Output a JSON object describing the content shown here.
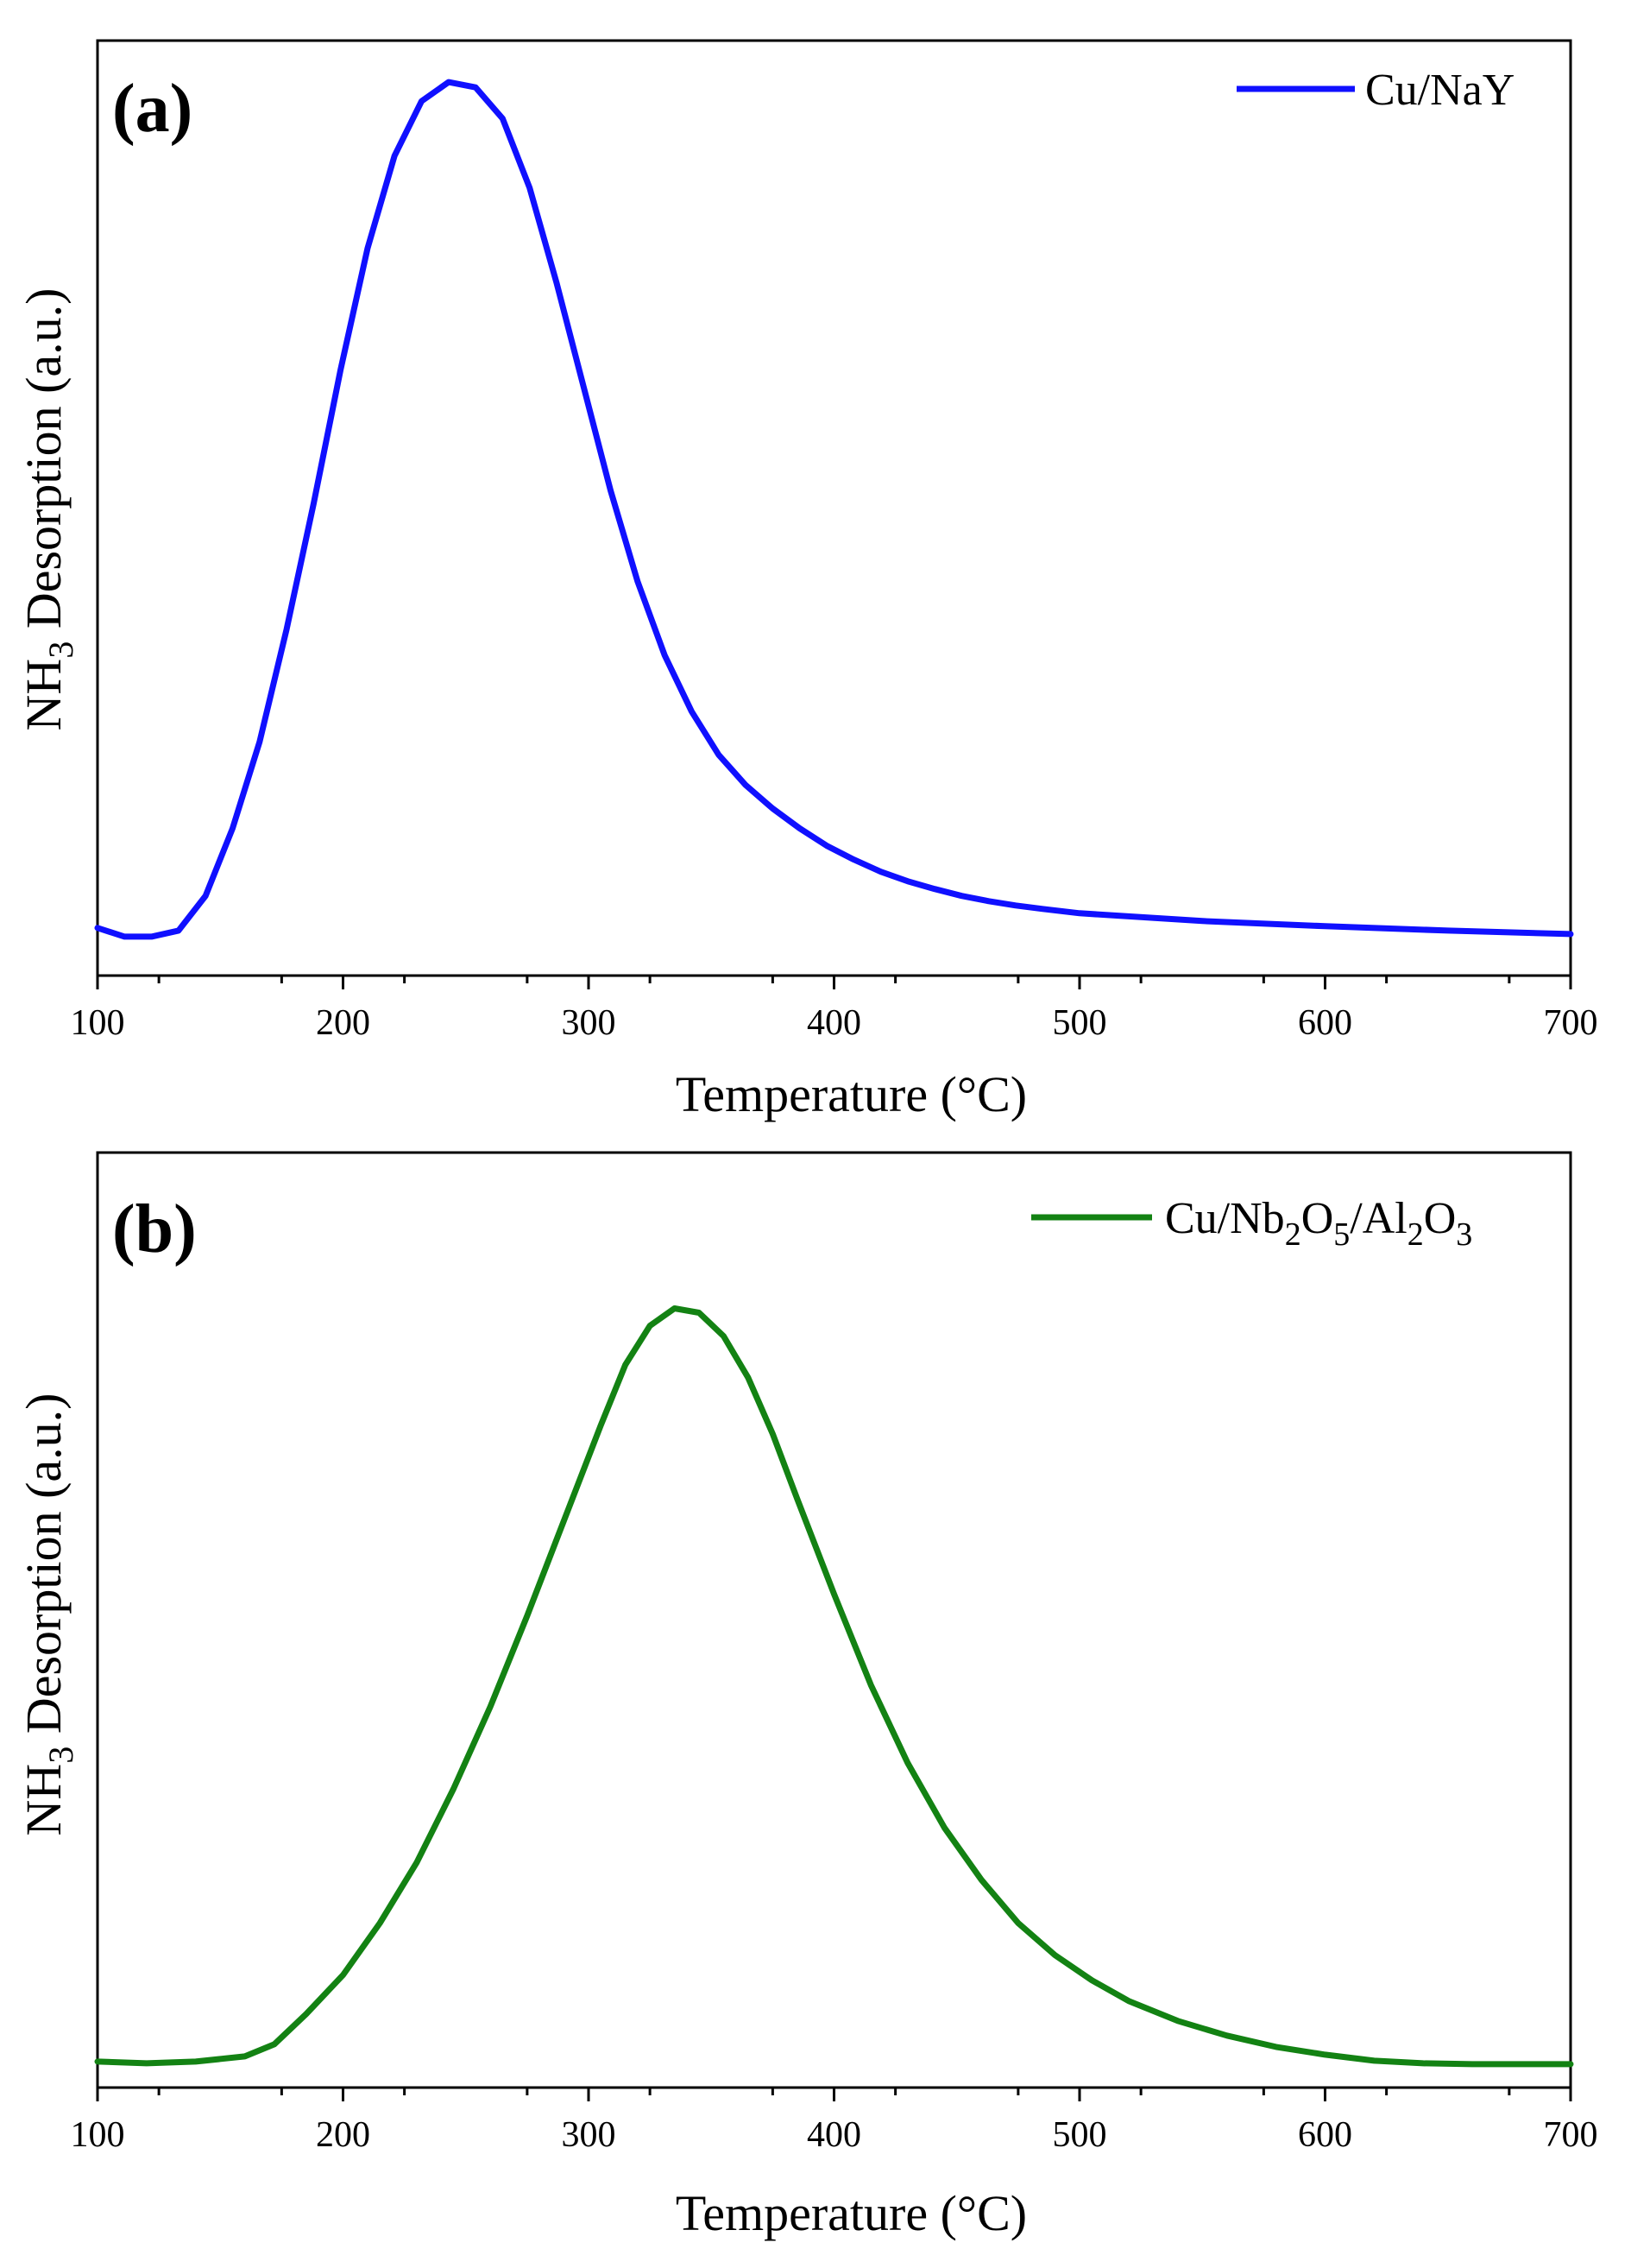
{
  "chart_data": [
    {
      "type": "line",
      "panel_label": "(a)",
      "xlabel": "Temperature (°C)",
      "ylabel": "NH3 Desorption (a.u.)",
      "ylabel_parts": {
        "pre": "NH",
        "sub": "3",
        "post": " Desorption (a.u.)"
      },
      "xlim": [
        100,
        700
      ],
      "ylim": [
        0,
        1.08
      ],
      "xticks": [
        100,
        200,
        300,
        400,
        500,
        600,
        700
      ],
      "y_tick_labels": false,
      "grid": false,
      "legend_position": "top-right",
      "series": [
        {
          "name": "Cu/NaY",
          "legend_parts": [
            {
              "t": "Cu/NaY",
              "sub": false
            }
          ],
          "color": "#1010ff",
          "x": [
            100,
            111,
            122,
            133,
            144,
            155,
            166,
            177,
            188,
            199,
            210,
            221,
            232,
            243,
            254,
            265,
            276,
            287,
            298,
            309,
            320,
            331,
            342,
            353,
            364,
            375,
            386,
            397,
            408,
            419,
            430,
            441,
            452,
            463,
            474,
            485,
            500,
            550,
            600,
            650,
            700
          ],
          "y": [
            0.055,
            0.045,
            0.045,
            0.052,
            0.092,
            0.17,
            0.27,
            0.4,
            0.545,
            0.7,
            0.84,
            0.947,
            1.01,
            1.032,
            1.026,
            0.99,
            0.91,
            0.8,
            0.68,
            0.56,
            0.455,
            0.37,
            0.305,
            0.255,
            0.22,
            0.193,
            0.17,
            0.15,
            0.134,
            0.12,
            0.109,
            0.1,
            0.092,
            0.086,
            0.081,
            0.077,
            0.072,
            0.063,
            0.057,
            0.052,
            0.048
          ]
        }
      ]
    },
    {
      "type": "line",
      "panel_label": "(b)",
      "xlabel": "Temperature (°C)",
      "ylabel": "NH3 Desorption (a.u.)",
      "ylabel_parts": {
        "pre": "NH",
        "sub": "3",
        "post": " Desorption (a.u.)"
      },
      "xlim": [
        100,
        700
      ],
      "ylim": [
        0,
        1.08
      ],
      "xticks": [
        100,
        200,
        300,
        400,
        500,
        600,
        700
      ],
      "y_tick_labels": false,
      "grid": false,
      "legend_position": "top-right",
      "series": [
        {
          "name": "Cu/Nb2O5/Al2O3",
          "legend_parts": [
            {
              "t": "Cu/Nb",
              "sub": false
            },
            {
              "t": "2",
              "sub": true
            },
            {
              "t": "O",
              "sub": false
            },
            {
              "t": "5",
              "sub": true
            },
            {
              "t": "/Al",
              "sub": false
            },
            {
              "t": "2",
              "sub": true
            },
            {
              "t": "O",
              "sub": false
            },
            {
              "t": "3",
              "sub": true
            }
          ],
          "color": "#138213",
          "x": [
            100,
            120,
            140,
            160,
            172,
            185,
            200,
            215,
            230,
            245,
            260,
            275,
            290,
            305,
            315,
            325,
            335,
            345,
            355,
            365,
            375,
            385,
            400,
            415,
            430,
            445,
            460,
            475,
            490,
            505,
            520,
            540,
            560,
            580,
            600,
            620,
            640,
            660,
            680,
            700
          ],
          "y": [
            0.03,
            0.028,
            0.03,
            0.036,
            0.05,
            0.085,
            0.13,
            0.19,
            0.26,
            0.345,
            0.44,
            0.545,
            0.655,
            0.765,
            0.835,
            0.88,
            0.9,
            0.895,
            0.868,
            0.82,
            0.755,
            0.68,
            0.57,
            0.465,
            0.375,
            0.3,
            0.24,
            0.19,
            0.153,
            0.124,
            0.1,
            0.077,
            0.06,
            0.047,
            0.038,
            0.031,
            0.028,
            0.027,
            0.027,
            0.027
          ]
        }
      ]
    }
  ]
}
